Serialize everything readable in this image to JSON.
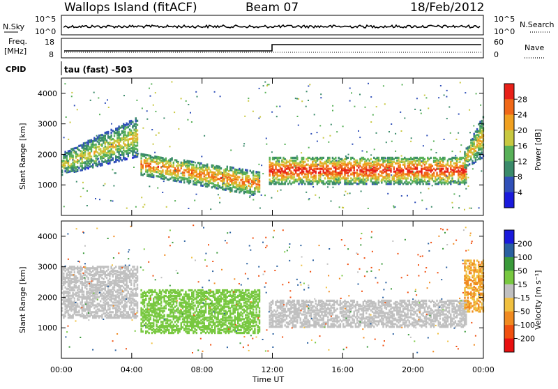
{
  "header": {
    "station": "Wallops Island (fitACF)",
    "beam": "Beam 07",
    "date": "18/Feb/2012"
  },
  "panels": {
    "nsky": {
      "label": "N.Sky",
      "left_ticks": [
        "10^5",
        "10^0"
      ],
      "right_ticks": [
        "10^5",
        "10^0"
      ],
      "right_label": "N.Search",
      "right_label_style": "dotted"
    },
    "freq": {
      "label_line1": "Freq.",
      "label_line2": "[MHz]",
      "left_ticks": [
        "18",
        "8"
      ],
      "right_ticks": [
        "60",
        "0"
      ],
      "right_label": "Nave",
      "right_label_style": "dotted"
    },
    "cpid": {
      "label": "CPID",
      "value": "tau (fast) -503"
    }
  },
  "time_axis": {
    "ticks": [
      "00:00",
      "04:00",
      "08:00",
      "12:00",
      "16:00",
      "20:00",
      "00:00"
    ],
    "label": "Time UT"
  },
  "chart_data": [
    {
      "type": "heatmap",
      "panel": "power",
      "title": "",
      "xlabel": "Time UT",
      "ylabel": "Slant Range [km]",
      "x_range_hours": [
        0,
        24
      ],
      "ylim": [
        0,
        4500
      ],
      "y_ticks": [
        1000,
        2000,
        3000,
        4000
      ],
      "colorbar": {
        "label": "Power [dB]",
        "ticks": [
          "4",
          "8",
          "12",
          "16",
          "20",
          "24",
          "28"
        ],
        "levels": [
          0,
          4,
          8,
          12,
          16,
          20,
          24,
          28,
          32
        ],
        "colors": [
          "#1a1adc",
          "#3050b8",
          "#3a8a6a",
          "#58b058",
          "#c8c840",
          "#f0a020",
          "#f06818",
          "#e82018"
        ]
      },
      "echo_regions": [
        {
          "t_start": 0.0,
          "t_end": 4.3,
          "range_low": 1300,
          "range_high": 2900,
          "value_dB": 18,
          "note": "morning backscatter band rising with time"
        },
        {
          "t_start": 4.5,
          "t_end": 11.3,
          "range_low": 700,
          "range_high": 2000,
          "value_dB": 24,
          "note": "descending band"
        },
        {
          "t_start": 11.8,
          "t_end": 23.0,
          "range_low": 1000,
          "range_high": 1900,
          "value_dB": 28,
          "note": "strong afternoon band"
        },
        {
          "t_start": 22.9,
          "t_end": 24.0,
          "range_low": 1500,
          "range_high": 3200,
          "value_dB": 20,
          "note": "late evening rise"
        }
      ]
    },
    {
      "type": "heatmap",
      "panel": "velocity",
      "title": "",
      "xlabel": "Time UT",
      "ylabel": "Slant Range [km]",
      "x_range_hours": [
        0,
        24
      ],
      "ylim": [
        0,
        4500
      ],
      "y_ticks": [
        1000,
        2000,
        3000,
        4000
      ],
      "colorbar": {
        "label": "Velocity [m s^-1]",
        "ticks": [
          "200",
          "100",
          "50",
          "15",
          "-15",
          "-50",
          "-100",
          "-200"
        ],
        "levels": [
          -250,
          -200,
          -100,
          -50,
          -15,
          15,
          50,
          100,
          200,
          250
        ],
        "colors": [
          "#e81010",
          "#f05010",
          "#f08a20",
          "#f0c040",
          "#c0c0c0",
          "#78c840",
          "#3a9a3a",
          "#2a60a0",
          "#1a1adc"
        ]
      },
      "echo_regions": [
        {
          "t_start": 0.0,
          "t_end": 4.3,
          "range_low": 1300,
          "range_high": 3000,
          "value_ms": 0,
          "note": "ground scatter (grey)"
        },
        {
          "t_start": 4.5,
          "t_end": 11.3,
          "range_low": 800,
          "range_high": 2200,
          "value_ms": 30,
          "note": "green band, moving echoes"
        },
        {
          "t_start": 11.8,
          "t_end": 23.0,
          "range_low": 1000,
          "range_high": 1900,
          "value_ms": 0,
          "note": "ground scatter (grey)"
        },
        {
          "t_start": 22.9,
          "t_end": 24.0,
          "range_low": 1500,
          "range_high": 3200,
          "value_ms": -50,
          "note": "orange/yellow edge"
        }
      ]
    }
  ]
}
